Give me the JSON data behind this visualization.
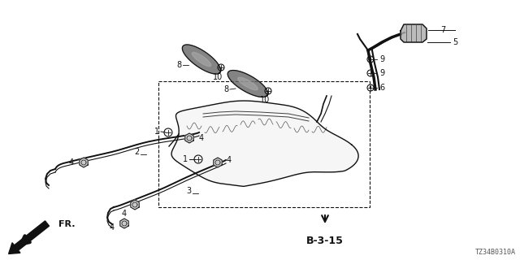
{
  "bg_color": "#ffffff",
  "line_color": "#111111",
  "code": "TZ34B0310A",
  "fig_w": 6.4,
  "fig_h": 3.2,
  "dpi": 100
}
